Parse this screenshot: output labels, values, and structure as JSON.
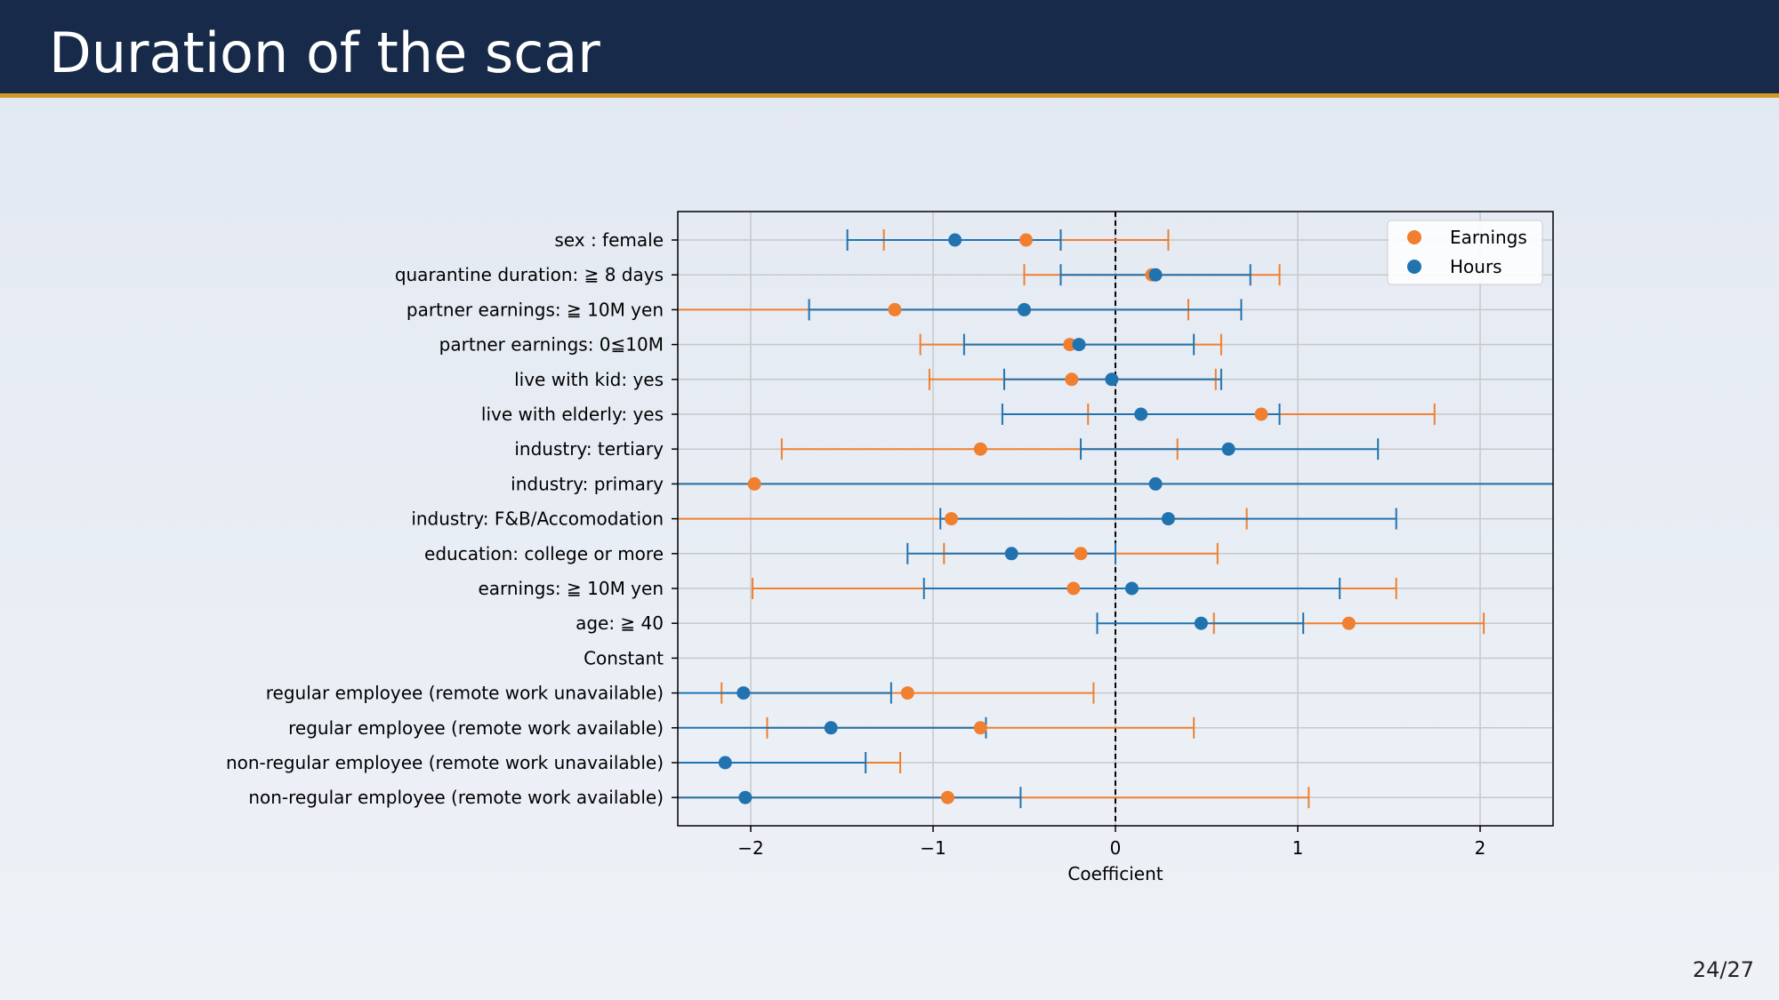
{
  "slide": {
    "title": "Duration of the scar",
    "page_current": "24",
    "page_total": "27"
  },
  "colors": {
    "header_bg": "#172a4a",
    "header_rule": "#d29a22",
    "earnings": "#f07f2f",
    "hours": "#2173b0"
  },
  "chart_data": {
    "type": "scatter",
    "subtype": "coefficient-plot-with-error-bars",
    "xlabel": "Coefficient",
    "xlim": [
      -2.4,
      2.4
    ],
    "xticks": [
      -2,
      -1,
      0,
      1,
      2
    ],
    "xtick_labels": [
      "−2",
      "−1",
      "0",
      "1",
      "2"
    ],
    "grid": true,
    "reference_line_x": 0,
    "legend_position": "top-right",
    "categories": [
      "sex : female",
      "quarantine duration:  ≧ 8 days",
      "partner earnings:  ≧ 10M yen",
      "partner earnings:  0≦10M",
      "live with kid:  yes",
      "live with elderly:  yes",
      "industry:  tertiary",
      "industry:  primary",
      "industry:  F&B/Accomodation",
      "education:  college or more",
      "earnings:  ≧ 10M yen",
      "age:  ≧ 40",
      "Constant",
      "regular employee (remote work unavailable)",
      "regular employee (remote work available)",
      "non-regular employee (remote work unavailable)",
      "non-regular employee (remote work available)"
    ],
    "series": [
      {
        "name": "Earnings",
        "color": "#f07f2f",
        "values": [
          -0.49,
          0.2,
          -1.21,
          -0.25,
          -0.24,
          0.8,
          -0.74,
          -1.98,
          -0.9,
          -0.19,
          -0.23,
          1.28,
          null,
          -1.14,
          -0.74,
          null,
          -0.92
        ],
        "ci_low": [
          -1.27,
          -0.5,
          -2.5,
          -1.07,
          -1.02,
          -0.15,
          -1.83,
          -2.5,
          -2.5,
          -0.94,
          -1.99,
          0.54,
          null,
          -2.16,
          -1.91,
          -2.5,
          -2.5
        ],
        "ci_high": [
          0.29,
          0.9,
          0.4,
          0.58,
          0.55,
          1.75,
          0.34,
          2.5,
          0.72,
          0.56,
          1.54,
          2.02,
          null,
          -0.12,
          0.43,
          -1.18,
          1.06
        ]
      },
      {
        "name": "Hours",
        "color": "#2173b0",
        "values": [
          -0.88,
          0.22,
          -0.5,
          -0.2,
          -0.02,
          0.14,
          0.62,
          0.22,
          0.29,
          -0.57,
          0.09,
          0.47,
          null,
          -2.04,
          -1.56,
          -2.14,
          -2.03
        ],
        "ci_low": [
          -1.47,
          -0.3,
          -1.68,
          -0.83,
          -0.61,
          -0.62,
          -0.19,
          -2.5,
          -0.96,
          -1.14,
          -1.05,
          -0.1,
          null,
          -2.5,
          -2.5,
          -2.5,
          -2.5
        ],
        "ci_high": [
          -0.3,
          0.74,
          0.69,
          0.43,
          0.58,
          0.9,
          1.44,
          2.5,
          1.54,
          0.0,
          1.23,
          1.03,
          null,
          -1.23,
          -0.71,
          -1.37,
          -0.52
        ]
      }
    ]
  }
}
